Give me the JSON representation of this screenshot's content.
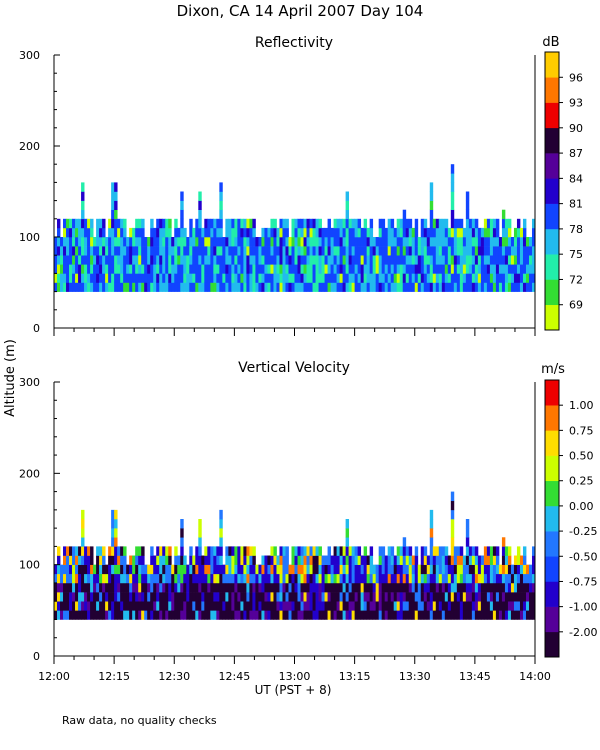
{
  "figure": {
    "title": "Dixon, CA 14 April 2007  Day 104",
    "shared_ylabel": "Altitude (m)",
    "shared_xlabel": "UT  (PST + 8)",
    "footnote": "Raw data, no quality checks"
  },
  "chart_data": [
    {
      "type": "heatmap",
      "title": "Reflectivity",
      "ylabel": "Altitude (m)",
      "ylim": [
        0,
        300
      ],
      "yticks": [
        0,
        100,
        200,
        300
      ],
      "xlim_minutes": [
        0,
        120
      ],
      "xticks_minutes": [
        0,
        15,
        30,
        45,
        60,
        75,
        90,
        105,
        120
      ],
      "xtick_labels": [],
      "colorbar_unit": "dB",
      "colorbar_labels": [
        "69",
        "72",
        "75",
        "78",
        "81",
        "84",
        "87",
        "90",
        "93",
        "96"
      ],
      "colorbar_colors": [
        "#ccff00",
        "#33dd33",
        "#22eeaa",
        "#22bbee",
        "#1144ff",
        "#2200cc",
        "#550099",
        "#220033",
        "#ee0000",
        "#ff7700",
        "#ffcc00"
      ],
      "data_summary": {
        "echo_base_altitude_m": 40,
        "typical_echo_top_altitude_m": 120,
        "max_echo_top_altitude_m": 180,
        "dominant_range_dB": [
          75,
          84
        ]
      }
    },
    {
      "type": "heatmap",
      "title": "Vertical Velocity",
      "ylabel": "Altitude (m)",
      "ylim": [
        0,
        300
      ],
      "yticks": [
        0,
        100,
        200,
        300
      ],
      "xlim_minutes": [
        0,
        120
      ],
      "xticks_minutes": [
        0,
        15,
        30,
        45,
        60,
        75,
        90,
        105,
        120
      ],
      "xtick_labels": [
        "12:00",
        "12:15",
        "12:30",
        "12:45",
        "13:00",
        "13:15",
        "13:30",
        "13:45",
        "14:00"
      ],
      "colorbar_unit": "m/s",
      "colorbar_labels": [
        "-2.00",
        "-1.00",
        "-0.75",
        "-0.50",
        "-0.25",
        "0.00",
        "0.25",
        "0.50",
        "0.75",
        "1.00"
      ],
      "colorbar_colors": [
        "#220033",
        "#550099",
        "#2200cc",
        "#1144ff",
        "#2277ff",
        "#22bbee",
        "#33dd33",
        "#ccff00",
        "#ffdd00",
        "#ff7700",
        "#ee0000"
      ],
      "data_summary": {
        "echo_base_altitude_m": 40,
        "typical_echo_top_altitude_m": 120,
        "max_echo_top_altitude_m": 180,
        "dominant_range_m_s": [
          -2.0,
          -0.5
        ]
      }
    }
  ]
}
